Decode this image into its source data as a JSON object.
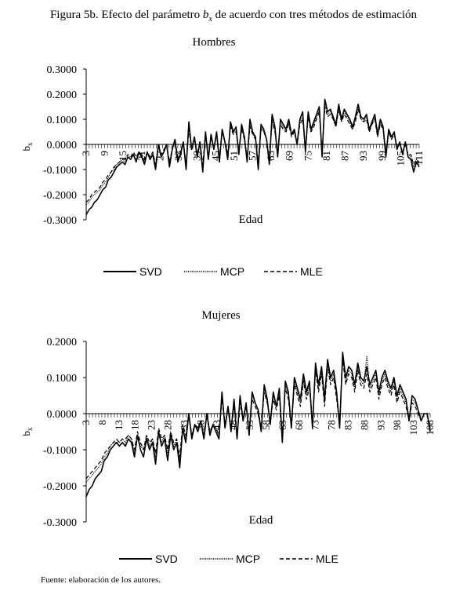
{
  "figure": {
    "title_prefix": "Figura 5b. Efecto del parámetro ",
    "title_var": "b",
    "title_sub": "x",
    "title_suffix": " de acuerdo con tres métodos de estimación",
    "source": "Fuente: elaboración de los autores."
  },
  "chart_data": [
    {
      "type": "line",
      "title": "Hombres",
      "xlabel": "Edad",
      "ylabel": "bx",
      "ylim": [
        -0.3,
        0.3
      ],
      "yticks": [
        "0.3000",
        "0.2000",
        "0.1000",
        "0.0000",
        "-0.1000",
        "-0.2000",
        "-0.3000"
      ],
      "yticks_values": [
        0.3,
        0.2,
        0.1,
        0.0,
        -0.1,
        -0.2,
        -0.3
      ],
      "x_start": 0,
      "x_end": 109,
      "xtick_labels": [
        "3",
        "9",
        "15",
        "21",
        "27",
        "33",
        "39",
        "45",
        "51",
        "57",
        "63",
        "69",
        "75",
        "81",
        "87",
        "93",
        "99",
        "105",
        "111"
      ],
      "legend": {
        "position": "bottom",
        "entries": [
          "SVD",
          "MCP",
          "MLE"
        ]
      },
      "series": [
        {
          "name": "SVD",
          "style": "solid",
          "values": [
            -0.28,
            -0.26,
            -0.25,
            -0.23,
            -0.22,
            -0.2,
            -0.18,
            -0.17,
            -0.14,
            -0.13,
            -0.11,
            -0.09,
            -0.08,
            -0.07,
            -0.08,
            -0.05,
            -0.06,
            -0.04,
            -0.07,
            -0.03,
            -0.05,
            -0.08,
            -0.03,
            -0.06,
            -0.04,
            -0.1,
            0.0,
            -0.05,
            -0.03,
            0.0,
            -0.09,
            -0.02,
            0.02,
            -0.07,
            -0.04,
            0.01,
            -0.1,
            0.09,
            -0.02,
            0.03,
            -0.05,
            0.01,
            -0.11,
            0.05,
            -0.06,
            0.04,
            -0.02,
            0.05,
            -0.07,
            0.06,
            0.01,
            -0.06,
            0.09,
            0.05,
            0.07,
            -0.04,
            0.08,
            0.03,
            -0.07,
            0.1,
            0.05,
            0.03,
            -0.1,
            0.08,
            0.06,
            0.02,
            -0.08,
            0.12,
            0.07,
            -0.05,
            0.1,
            0.08,
            0.06,
            0.1,
            0.04,
            0.06,
            0.0,
            0.1,
            0.13,
            -0.03,
            0.13,
            0.06,
            0.09,
            0.12,
            0.15,
            -0.05,
            0.18,
            0.13,
            0.14,
            0.11,
            0.08,
            0.16,
            0.1,
            0.14,
            0.12,
            0.1,
            0.07,
            0.11,
            0.16,
            0.11,
            0.1,
            0.12,
            0.06,
            0.09,
            0.12,
            0.04,
            0.1,
            0.07,
            -0.05,
            0.06,
            0.03,
            0.05,
            -0.02,
            0.01,
            -0.04,
            0.01,
            -0.05,
            -0.06,
            -0.11,
            -0.07,
            -0.09
          ]
        },
        {
          "name": "MCP",
          "style": "dotted",
          "values": [
            -0.24,
            -0.23,
            -0.21,
            -0.2,
            -0.19,
            -0.18,
            -0.16,
            -0.15,
            -0.13,
            -0.11,
            -0.1,
            -0.08,
            -0.07,
            -0.06,
            -0.07,
            -0.05,
            -0.05,
            -0.04,
            -0.06,
            -0.03,
            -0.04,
            -0.07,
            -0.03,
            -0.05,
            -0.03,
            -0.09,
            0.0,
            -0.04,
            -0.03,
            0.0,
            -0.08,
            -0.02,
            0.02,
            -0.06,
            -0.03,
            0.01,
            -0.09,
            0.07,
            -0.02,
            0.03,
            -0.04,
            0.01,
            -0.09,
            0.04,
            -0.05,
            0.03,
            -0.02,
            0.04,
            -0.06,
            0.05,
            0.01,
            -0.05,
            0.08,
            0.04,
            0.06,
            -0.03,
            0.07,
            0.03,
            -0.06,
            0.08,
            0.04,
            0.03,
            -0.08,
            0.07,
            0.05,
            0.02,
            -0.07,
            0.1,
            0.06,
            -0.04,
            0.09,
            0.07,
            0.05,
            0.09,
            0.04,
            0.05,
            0.0,
            0.09,
            0.11,
            -0.02,
            0.12,
            0.05,
            0.08,
            0.11,
            0.14,
            -0.03,
            0.16,
            0.12,
            0.13,
            0.1,
            0.07,
            0.15,
            0.09,
            0.13,
            0.11,
            0.09,
            0.06,
            0.1,
            0.15,
            0.1,
            0.09,
            0.11,
            0.05,
            0.08,
            0.11,
            0.03,
            0.09,
            0.06,
            -0.04,
            0.05,
            0.02,
            0.04,
            -0.01,
            0.0,
            -0.03,
            0.0,
            -0.04,
            -0.05,
            -0.09,
            -0.06,
            -0.08
          ]
        },
        {
          "name": "MLE",
          "style": "dashed",
          "values": [
            -0.23,
            -0.22,
            -0.2,
            -0.19,
            -0.18,
            -0.17,
            -0.15,
            -0.14,
            -0.12,
            -0.11,
            -0.09,
            -0.08,
            -0.07,
            -0.06,
            -0.06,
            -0.04,
            -0.05,
            -0.03,
            -0.05,
            -0.03,
            -0.04,
            -0.06,
            -0.03,
            -0.05,
            -0.03,
            -0.08,
            0.0,
            -0.04,
            -0.02,
            0.0,
            -0.07,
            -0.02,
            0.02,
            -0.05,
            -0.03,
            0.01,
            -0.08,
            0.06,
            -0.02,
            0.02,
            -0.04,
            0.01,
            -0.08,
            0.04,
            -0.05,
            0.03,
            -0.02,
            0.04,
            -0.05,
            0.05,
            0.01,
            -0.04,
            0.07,
            0.04,
            0.05,
            -0.03,
            0.06,
            0.02,
            -0.05,
            0.07,
            0.04,
            0.02,
            -0.07,
            0.06,
            0.05,
            0.02,
            -0.06,
            0.09,
            0.05,
            -0.03,
            0.08,
            0.06,
            0.05,
            0.08,
            0.03,
            0.05,
            0.0,
            0.08,
            0.1,
            -0.02,
            0.11,
            0.05,
            0.07,
            0.1,
            0.13,
            -0.03,
            0.15,
            0.11,
            0.12,
            0.1,
            0.07,
            0.14,
            0.09,
            0.12,
            0.1,
            0.08,
            0.06,
            0.09,
            0.14,
            0.1,
            0.09,
            0.1,
            0.05,
            0.08,
            0.1,
            0.03,
            0.08,
            0.06,
            -0.03,
            0.05,
            0.02,
            0.04,
            -0.01,
            0.0,
            -0.03,
            0.0,
            -0.04,
            -0.04,
            -0.08,
            -0.06,
            -0.07
          ]
        }
      ]
    },
    {
      "type": "line",
      "title": "Mujeres",
      "xlabel": "Edad",
      "ylabel": "bx",
      "ylim": [
        -0.3,
        0.2
      ],
      "yticks": [
        "0.2000",
        "0.1000",
        "0.0000",
        "-0.1000",
        "-0.2000",
        "-0.3000"
      ],
      "yticks_values": [
        0.2,
        0.1,
        0.0,
        -0.1,
        -0.2,
        -0.3
      ],
      "x_start": 0,
      "x_end": 110,
      "xtick_labels": [
        "3",
        "8",
        "13",
        "18",
        "23",
        "28",
        "33",
        "38",
        "43",
        "48",
        "53",
        "58",
        "63",
        "68",
        "73",
        "78",
        "83",
        "88",
        "93",
        "98",
        "103",
        "108"
      ],
      "legend": {
        "position": "bottom",
        "entries": [
          "SVD",
          "MCP",
          "MLE"
        ]
      },
      "series": [
        {
          "name": "SVD",
          "style": "solid",
          "values": [
            -0.23,
            -0.21,
            -0.2,
            -0.18,
            -0.17,
            -0.16,
            -0.13,
            -0.12,
            -0.1,
            -0.09,
            -0.08,
            -0.09,
            -0.08,
            -0.09,
            -0.07,
            -0.08,
            -0.12,
            -0.06,
            -0.1,
            -0.12,
            -0.07,
            -0.1,
            -0.08,
            -0.14,
            -0.05,
            -0.09,
            -0.07,
            -0.13,
            -0.06,
            -0.1,
            -0.08,
            -0.15,
            -0.04,
            -0.08,
            0.0,
            -0.07,
            -0.03,
            -0.05,
            -0.02,
            -0.07,
            0.0,
            -0.06,
            -0.03,
            -0.05,
            -0.07,
            0.06,
            -0.04,
            0.02,
            -0.05,
            0.04,
            -0.07,
            0.05,
            -0.02,
            0.03,
            -0.06,
            0.06,
            0.03,
            0.01,
            -0.05,
            0.08,
            0.04,
            -0.03,
            0.06,
            0.02,
            0.07,
            -0.08,
            0.09,
            0.06,
            -0.04,
            0.1,
            0.07,
            0.04,
            0.11,
            0.06,
            0.09,
            -0.04,
            0.14,
            0.08,
            0.13,
            0.04,
            0.15,
            0.1,
            0.12,
            0.06,
            -0.04,
            0.17,
            0.1,
            0.13,
            0.12,
            0.08,
            0.14,
            0.1,
            0.09,
            0.13,
            0.08,
            0.1,
            0.12,
            0.06,
            0.1,
            0.12,
            0.09,
            0.07,
            0.1,
            0.05,
            0.08,
            0.06,
            0.04,
            -0.02,
            0.05,
            0.04,
            0.01,
            -0.02,
            0.0,
            0.0,
            -0.05
          ]
        },
        {
          "name": "MCP",
          "style": "dotted",
          "values": [
            -0.19,
            -0.18,
            -0.17,
            -0.16,
            -0.15,
            -0.14,
            -0.12,
            -0.11,
            -0.09,
            -0.08,
            -0.08,
            -0.08,
            -0.07,
            -0.08,
            -0.06,
            -0.07,
            -0.11,
            -0.06,
            -0.09,
            -0.1,
            -0.06,
            -0.09,
            -0.07,
            -0.12,
            -0.05,
            -0.08,
            -0.06,
            -0.11,
            -0.05,
            -0.09,
            -0.07,
            -0.13,
            -0.04,
            -0.07,
            0.0,
            -0.06,
            -0.03,
            -0.04,
            -0.02,
            -0.06,
            0.0,
            -0.05,
            -0.03,
            -0.04,
            -0.06,
            0.05,
            -0.03,
            0.02,
            -0.04,
            0.03,
            -0.06,
            0.04,
            -0.02,
            0.02,
            -0.05,
            0.05,
            0.03,
            0.01,
            -0.04,
            0.07,
            0.03,
            -0.02,
            0.05,
            0.02,
            0.06,
            -0.07,
            0.08,
            0.05,
            -0.03,
            0.09,
            0.06,
            0.03,
            0.1,
            0.05,
            0.08,
            -0.03,
            0.13,
            0.07,
            0.12,
            0.03,
            0.14,
            0.09,
            0.11,
            0.05,
            -0.03,
            0.16,
            0.09,
            0.12,
            0.11,
            0.07,
            0.13,
            0.09,
            0.08,
            0.16,
            0.07,
            0.09,
            0.11,
            0.05,
            0.09,
            0.11,
            0.08,
            0.06,
            0.09,
            0.04,
            0.07,
            0.05,
            0.03,
            -0.02,
            0.04,
            0.03,
            0.01,
            -0.02,
            0.0,
            0.0,
            -0.04
          ]
        },
        {
          "name": "MLE",
          "style": "dashed",
          "values": [
            -0.18,
            -0.17,
            -0.16,
            -0.15,
            -0.14,
            -0.13,
            -0.11,
            -0.1,
            -0.09,
            -0.08,
            -0.07,
            -0.08,
            -0.07,
            -0.07,
            -0.06,
            -0.07,
            -0.1,
            -0.05,
            -0.08,
            -0.1,
            -0.06,
            -0.08,
            -0.07,
            -0.11,
            -0.04,
            -0.07,
            -0.06,
            -0.1,
            -0.05,
            -0.08,
            -0.07,
            -0.12,
            -0.03,
            -0.06,
            0.0,
            -0.06,
            -0.03,
            -0.04,
            -0.02,
            -0.06,
            0.0,
            -0.05,
            -0.03,
            -0.04,
            -0.06,
            0.04,
            -0.03,
            0.01,
            -0.04,
            0.02,
            -0.06,
            0.03,
            -0.02,
            0.02,
            -0.05,
            0.04,
            0.02,
            0.0,
            -0.04,
            0.06,
            0.03,
            -0.02,
            0.04,
            0.01,
            0.05,
            -0.06,
            0.07,
            0.04,
            -0.03,
            0.08,
            0.05,
            0.02,
            0.09,
            0.04,
            0.07,
            -0.03,
            0.12,
            0.06,
            0.11,
            0.02,
            0.13,
            0.08,
            0.1,
            0.04,
            -0.03,
            0.15,
            0.08,
            0.11,
            0.1,
            0.06,
            0.12,
            0.08,
            0.07,
            0.11,
            0.06,
            0.08,
            0.1,
            0.04,
            0.08,
            0.1,
            0.07,
            0.05,
            0.08,
            0.03,
            0.06,
            0.04,
            0.02,
            -0.02,
            0.03,
            0.02,
            0.0,
            -0.02,
            0.0,
            0.0,
            -0.04
          ]
        }
      ]
    }
  ]
}
